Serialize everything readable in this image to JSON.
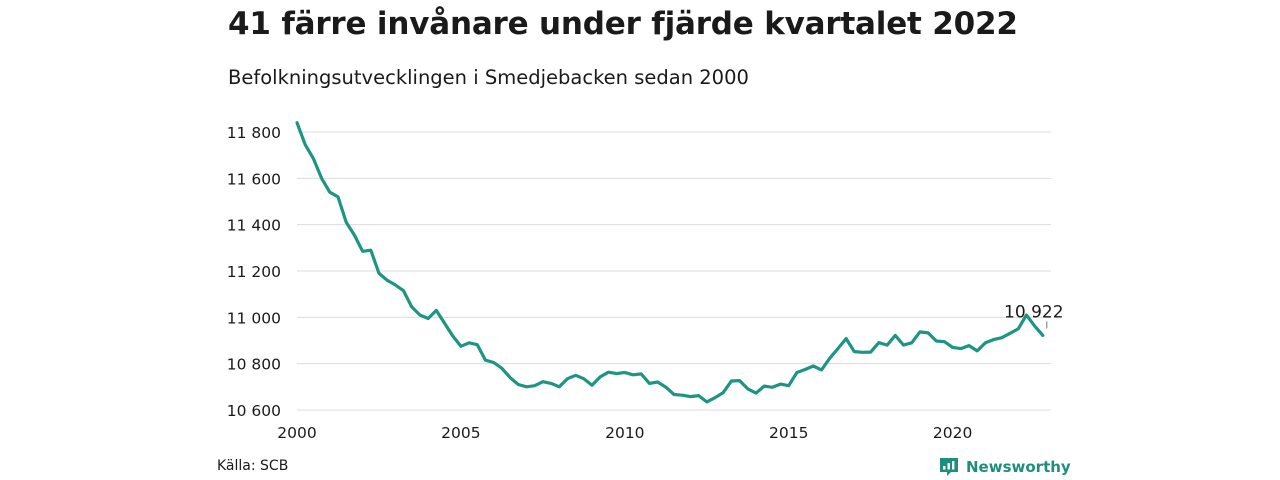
{
  "header": {
    "title": "41 färre invånare under fjärde kvartalet 2022",
    "subtitle": "Befolkningsutvecklingen i Smedjebacken sedan 2000"
  },
  "footer": {
    "source": "Källa: SCB",
    "brand": "Newsworthy",
    "brand_icon": "newsworthy-logo-icon"
  },
  "colors": {
    "line": "#1e9582",
    "grid": "#dcdcdc",
    "text": "#1a1a1a",
    "brand": "#1e8f7e"
  },
  "chart_data": {
    "type": "line",
    "title": "41 färre invånare under fjärde kvartalet 2022",
    "subtitle": "Befolkningsutvecklingen i Smedjebacken sedan 2000",
    "xlim": [
      2000,
      2023
    ],
    "ylim": [
      10600,
      11800
    ],
    "x_ticks": [
      2000,
      2005,
      2010,
      2015,
      2020
    ],
    "x_tick_labels": [
      "2000",
      "2005",
      "2010",
      "2015",
      "2020"
    ],
    "y_ticks": [
      10600,
      10800,
      11000,
      11200,
      11400,
      11600,
      11800
    ],
    "y_tick_labels": [
      "10 600",
      "10 800",
      "11 000",
      "11 200",
      "11 400",
      "11 600",
      "11 800"
    ],
    "grid": "horizontal",
    "annotation": {
      "text": "10 922",
      "x": 2022.75,
      "y": 10922
    },
    "series": [
      {
        "x": [
          2000.0,
          2000.25,
          2000.5,
          2000.75,
          2001.0,
          2001.25,
          2001.5,
          2001.75,
          2002.0,
          2002.25,
          2002.5,
          2002.75,
          2003.0,
          2003.25,
          2003.5,
          2003.75,
          2004.0,
          2004.25,
          2004.5,
          2004.75,
          2005.0,
          2005.25,
          2005.5,
          2005.75,
          2006.0,
          2006.25,
          2006.5,
          2006.75,
          2007.0,
          2007.25,
          2007.5,
          2007.75,
          2008.0,
          2008.25,
          2008.5,
          2008.75,
          2009.0,
          2009.25,
          2009.5,
          2009.75,
          2010.0,
          2010.25,
          2010.5,
          2010.75,
          2011.0,
          2011.25,
          2011.5,
          2011.75,
          2012.0,
          2012.25,
          2012.5,
          2012.75,
          2013.0,
          2013.25,
          2013.5,
          2013.75,
          2014.0,
          2014.25,
          2014.5,
          2014.75,
          2015.0,
          2015.25,
          2015.5,
          2015.75,
          2016.0,
          2016.25,
          2016.5,
          2016.75,
          2017.0,
          2017.25,
          2017.5,
          2017.75,
          2018.0,
          2018.25,
          2018.5,
          2018.75,
          2019.0,
          2019.25,
          2019.5,
          2019.75,
          2020.0,
          2020.25,
          2020.5,
          2020.75,
          2021.0,
          2021.25,
          2021.5,
          2021.75,
          2022.0,
          2022.25,
          2022.5,
          2022.75
        ],
        "values": [
          11840,
          11745,
          11685,
          11600,
          11540,
          11520,
          11410,
          11355,
          11285,
          11290,
          11190,
          11160,
          11140,
          11115,
          11045,
          11010,
          10995,
          11030,
          10975,
          10920,
          10875,
          10890,
          10882,
          10815,
          10805,
          10780,
          10740,
          10710,
          10700,
          10705,
          10722,
          10715,
          10700,
          10735,
          10750,
          10735,
          10707,
          10743,
          10763,
          10757,
          10762,
          10752,
          10756,
          10715,
          10721,
          10699,
          10667,
          10664,
          10658,
          10662,
          10635,
          10653,
          10675,
          10725,
          10727,
          10691,
          10673,
          10703,
          10698,
          10712,
          10705,
          10762,
          10775,
          10790,
          10773,
          10823,
          10865,
          10908,
          10852,
          10849,
          10850,
          10891,
          10880,
          10922,
          10880,
          10890,
          10937,
          10933,
          10898,
          10895,
          10870,
          10865,
          10878,
          10855,
          10890,
          10904,
          10912,
          10931,
          10950,
          11010,
          10963,
          10922
        ]
      }
    ]
  }
}
